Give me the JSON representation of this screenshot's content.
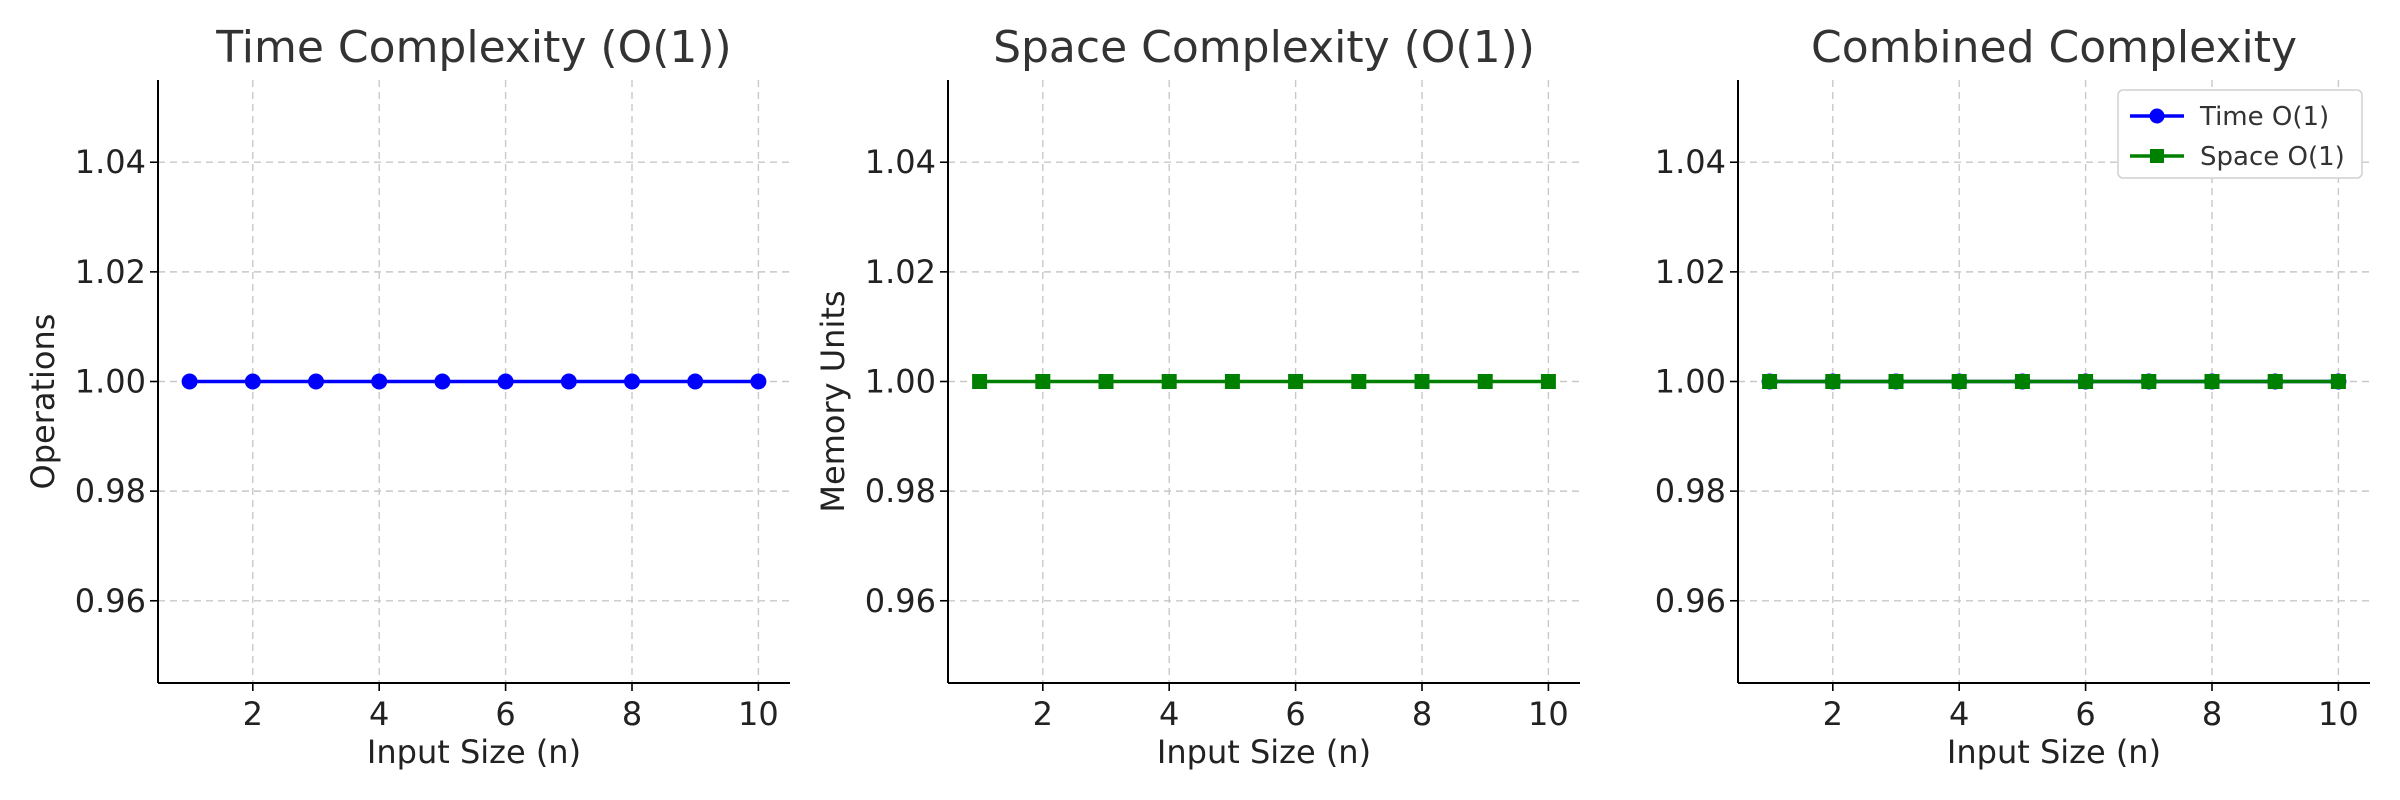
{
  "chart_data": [
    {
      "type": "line",
      "title": "Time Complexity (O(1))",
      "xlabel": "Input Size (n)",
      "ylabel": "Operations",
      "xlim": [
        0.5,
        10.5
      ],
      "ylim": [
        0.945,
        1.055
      ],
      "xticks": [
        2,
        4,
        6,
        8,
        10
      ],
      "xtick_labels": [
        "2",
        "4",
        "6",
        "8",
        "10"
      ],
      "yticks": [
        0.96,
        0.98,
        1.0,
        1.02,
        1.04
      ],
      "ytick_labels": [
        "0.96",
        "0.98",
        "1.00",
        "1.02",
        "1.04"
      ],
      "grid": true,
      "x": [
        1,
        2,
        3,
        4,
        5,
        6,
        7,
        8,
        9,
        10
      ],
      "series": [
        {
          "values": [
            1,
            1,
            1,
            1,
            1,
            1,
            1,
            1,
            1,
            1
          ],
          "color": "#0000ff",
          "marker": "circle"
        }
      ]
    },
    {
      "type": "line",
      "title": "Space Complexity (O(1))",
      "xlabel": "Input Size (n)",
      "ylabel": "Memory Units",
      "xlim": [
        0.5,
        10.5
      ],
      "ylim": [
        0.945,
        1.055
      ],
      "xticks": [
        2,
        4,
        6,
        8,
        10
      ],
      "xtick_labels": [
        "2",
        "4",
        "6",
        "8",
        "10"
      ],
      "yticks": [
        0.96,
        0.98,
        1.0,
        1.02,
        1.04
      ],
      "ytick_labels": [
        "0.96",
        "0.98",
        "1.00",
        "1.02",
        "1.04"
      ],
      "grid": true,
      "x": [
        1,
        2,
        3,
        4,
        5,
        6,
        7,
        8,
        9,
        10
      ],
      "series": [
        {
          "values": [
            1,
            1,
            1,
            1,
            1,
            1,
            1,
            1,
            1,
            1
          ],
          "color": "#008000",
          "marker": "square"
        }
      ]
    },
    {
      "type": "line",
      "title": "Combined Complexity",
      "xlabel": "Input Size (n)",
      "ylabel": "",
      "xlim": [
        0.5,
        10.5
      ],
      "ylim": [
        0.945,
        1.055
      ],
      "xticks": [
        2,
        4,
        6,
        8,
        10
      ],
      "xtick_labels": [
        "2",
        "4",
        "6",
        "8",
        "10"
      ],
      "yticks": [
        0.96,
        0.98,
        1.0,
        1.02,
        1.04
      ],
      "ytick_labels": [
        "0.96",
        "0.98",
        "1.00",
        "1.02",
        "1.04"
      ],
      "grid": true,
      "legend": "top-right",
      "x": [
        1,
        2,
        3,
        4,
        5,
        6,
        7,
        8,
        9,
        10
      ],
      "series": [
        {
          "name": "Time O(1)",
          "values": [
            1,
            1,
            1,
            1,
            1,
            1,
            1,
            1,
            1,
            1
          ],
          "color": "#0000ff",
          "marker": "circle"
        },
        {
          "name": "Space O(1)",
          "values": [
            1,
            1,
            1,
            1,
            1,
            1,
            1,
            1,
            1,
            1
          ],
          "color": "#008000",
          "marker": "square"
        }
      ]
    }
  ]
}
